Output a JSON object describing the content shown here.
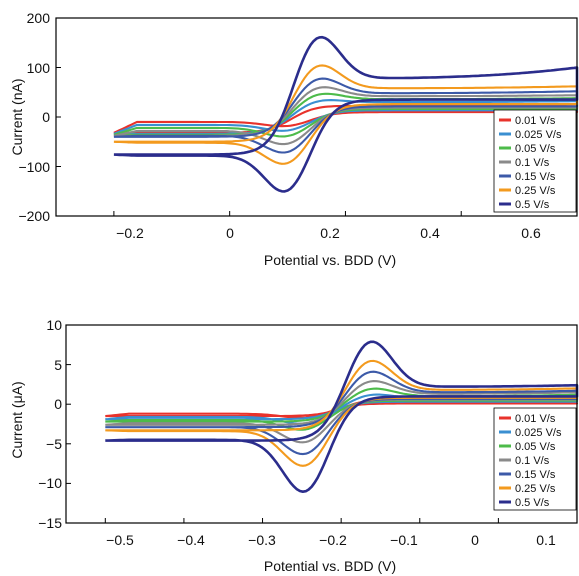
{
  "chart_data": [
    {
      "type": "line",
      "xlabel": "Potential vs. BDD (V)",
      "ylabel": "Current (nA)",
      "xlim": [
        -0.3,
        0.6
      ],
      "ylim": [
        -200,
        200
      ],
      "xticks": [
        -0.2,
        0,
        0.2,
        0.4,
        0.6
      ],
      "xtick_labels": [
        "−0.2",
        "0",
        "0.2",
        "0.4",
        "0.6"
      ],
      "yticks": [
        -200,
        -100,
        0,
        100,
        200
      ],
      "ytick_labels": [
        "−200",
        "−100",
        "0",
        "100",
        "200"
      ],
      "grid": false,
      "legend": "right",
      "x_start": -0.2,
      "x_end": 0.6,
      "e_ox": 0.15,
      "e_red": 0.1,
      "series": [
        {
          "name": "0.01 V/s",
          "color": "#e8322b",
          "peak_anodic": 24,
          "peak_cathodic": -20,
          "plateau_anodic": 22,
          "plateau_cathodic": -10,
          "start_current": -32,
          "end_current": 26
        },
        {
          "name": "0.025 V/s",
          "color": "#3a8fd1",
          "peak_anodic": 38,
          "peak_cathodic": -30,
          "plateau_anodic": 30,
          "plateau_cathodic": -16,
          "start_current": -34,
          "end_current": 32
        },
        {
          "name": "0.05 V/s",
          "color": "#4dbb4a",
          "peak_anodic": 52,
          "peak_cathodic": -42,
          "plateau_anodic": 36,
          "plateau_cathodic": -22,
          "start_current": -36,
          "end_current": 38
        },
        {
          "name": "0.1 V/s",
          "color": "#8a8a8a",
          "peak_anodic": 66,
          "peak_cathodic": -58,
          "plateau_anodic": 42,
          "plateau_cathodic": -28,
          "start_current": -38,
          "end_current": 44
        },
        {
          "name": "0.15 V/s",
          "color": "#3c5aa8",
          "peak_anodic": 84,
          "peak_cathodic": -76,
          "plateau_anodic": 48,
          "plateau_cathodic": -38,
          "start_current": -40,
          "end_current": 52
        },
        {
          "name": "0.25 V/s",
          "color": "#f39a1e",
          "peak_anodic": 112,
          "peak_cathodic": -100,
          "plateau_anodic": 58,
          "plateau_cathodic": -52,
          "start_current": -50,
          "end_current": 62
        },
        {
          "name": "0.5 V/s",
          "color": "#2b2d8c",
          "peak_anodic": 172,
          "peak_cathodic": -158,
          "plateau_anodic": 78,
          "plateau_cathodic": -78,
          "start_current": -76,
          "end_current": 100
        }
      ]
    },
    {
      "type": "line",
      "xlabel": "Potential vs. BDD (V)",
      "ylabel": "Current (μA)",
      "xlim": [
        -0.55,
        0.1
      ],
      "ylim": [
        -15,
        10
      ],
      "xticks": [
        -0.5,
        -0.4,
        -0.3,
        -0.2,
        -0.1,
        0,
        0.1
      ],
      "xtick_labels": [
        "−0.5",
        "−0.4",
        "−0.3",
        "−0.2",
        "−0.1",
        "0",
        "0.1"
      ],
      "yticks": [
        -15,
        -10,
        -5,
        0,
        5,
        10
      ],
      "ytick_labels": [
        "−15",
        "−10",
        "−5",
        "0",
        "5",
        "10"
      ],
      "grid": false,
      "legend": "right",
      "x_start": -0.5,
      "x_end": 0.1,
      "e_ox": -0.165,
      "e_red": -0.245,
      "series": [
        {
          "name": "0.01 V/s",
          "color": "#e8322b",
          "peak_anodic": 0.6,
          "peak_cathodic": -1.8,
          "plateau_anodic": 0.2,
          "plateau_cathodic": -1.2,
          "start_current": -1.5,
          "end_current": 0.1
        },
        {
          "name": "0.025 V/s",
          "color": "#3a8fd1",
          "peak_anodic": 1.4,
          "peak_cathodic": -2.6,
          "plateau_anodic": 0.7,
          "plateau_cathodic": -1.6,
          "start_current": -1.9,
          "end_current": 0.9
        },
        {
          "name": "0.05 V/s",
          "color": "#4dbb4a",
          "peak_anodic": 2.2,
          "peak_cathodic": -3.4,
          "plateau_anodic": 1.0,
          "plateau_cathodic": -2.0,
          "start_current": -2.2,
          "end_current": 1.2
        },
        {
          "name": "0.1 V/s",
          "color": "#8a8a8a",
          "peak_anodic": 3.2,
          "peak_cathodic": -5.0,
          "plateau_anodic": 1.3,
          "plateau_cathodic": -2.4,
          "start_current": -2.6,
          "end_current": 1.5
        },
        {
          "name": "0.15 V/s",
          "color": "#3c5aa8",
          "peak_anodic": 4.4,
          "peak_cathodic": -6.5,
          "plateau_anodic": 1.5,
          "plateau_cathodic": -2.9,
          "start_current": -2.9,
          "end_current": 1.7
        },
        {
          "name": "0.25 V/s",
          "color": "#f39a1e",
          "peak_anodic": 5.8,
          "peak_cathodic": -8.0,
          "plateau_anodic": 1.8,
          "plateau_cathodic": -3.4,
          "start_current": -3.3,
          "end_current": 2.0
        },
        {
          "name": "0.5 V/s",
          "color": "#2b2d8c",
          "peak_anodic": 8.3,
          "peak_cathodic": -11.3,
          "plateau_anodic": 2.2,
          "plateau_cathodic": -4.5,
          "start_current": -4.6,
          "end_current": 2.4
        }
      ]
    }
  ]
}
